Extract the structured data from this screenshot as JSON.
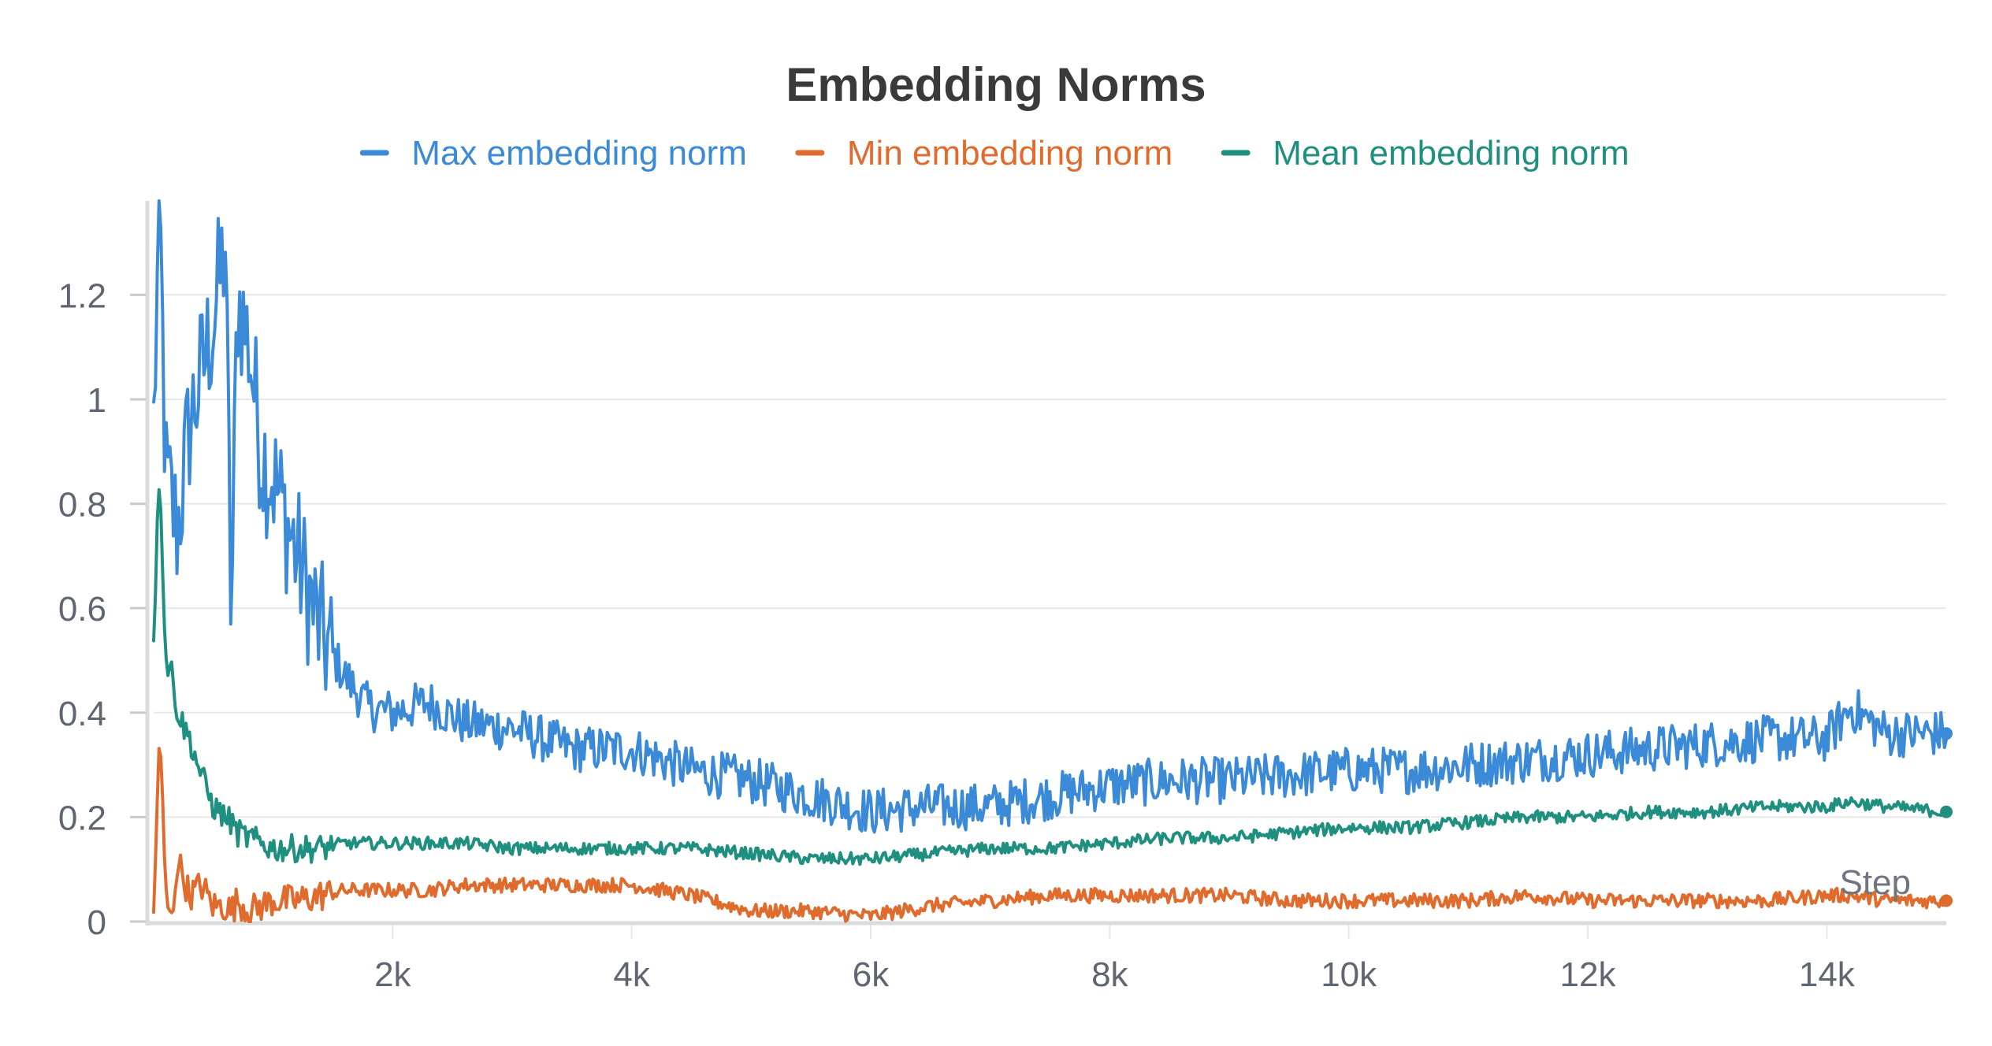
{
  "chart_data": {
    "type": "line",
    "title": "Embedding Norms",
    "xlabel": "Step",
    "ylabel": "",
    "xlim": [
      0,
      15000
    ],
    "ylim": [
      0,
      1.38
    ],
    "x_ticks": [
      2000,
      4000,
      6000,
      8000,
      10000,
      12000,
      14000
    ],
    "x_tick_labels": [
      "2k",
      "4k",
      "6k",
      "8k",
      "10k",
      "12k",
      "14k"
    ],
    "y_ticks": [
      0,
      0.2,
      0.4,
      0.6,
      0.8,
      1,
      1.2
    ],
    "y_tick_labels": [
      "0",
      "0.2",
      "0.4",
      "0.6",
      "0.8",
      "1",
      "1.2"
    ],
    "grid": true,
    "legend_position": "top-center",
    "x": [
      0,
      50,
      100,
      150,
      200,
      300,
      400,
      500,
      600,
      650,
      700,
      800,
      900,
      1000,
      1200,
      1400,
      1600,
      1800,
      2000,
      2300,
      2600,
      3000,
      3500,
      4000,
      4500,
      5000,
      5500,
      6000,
      6500,
      7000,
      7500,
      8000,
      8500,
      9000,
      9500,
      10000,
      10500,
      11000,
      11500,
      12000,
      12500,
      13000,
      13500,
      14000,
      14200,
      14500,
      15000
    ],
    "series": [
      {
        "name": "Max embedding norm",
        "color": "#3b8ad8",
        "values": [
          0.95,
          1.38,
          0.85,
          0.8,
          0.75,
          0.95,
          1.05,
          1.15,
          1.3,
          0.55,
          1.2,
          1.1,
          0.9,
          0.85,
          0.7,
          0.55,
          0.47,
          0.41,
          0.4,
          0.42,
          0.38,
          0.37,
          0.33,
          0.33,
          0.29,
          0.27,
          0.24,
          0.21,
          0.22,
          0.22,
          0.24,
          0.26,
          0.27,
          0.27,
          0.28,
          0.29,
          0.29,
          0.3,
          0.31,
          0.32,
          0.33,
          0.34,
          0.35,
          0.35,
          0.41,
          0.36,
          0.36
        ]
      },
      {
        "name": "Min embedding norm",
        "color": "#e06b2c",
        "values": [
          0,
          0.38,
          0.05,
          0,
          0.12,
          0.05,
          0.07,
          0.03,
          0.03,
          0.02,
          0.04,
          0.02,
          0.03,
          0.04,
          0.04,
          0.05,
          0.06,
          0.06,
          0.06,
          0.06,
          0.07,
          0.07,
          0.07,
          0.07,
          0.05,
          0.02,
          0.02,
          0.01,
          0.03,
          0.04,
          0.05,
          0.05,
          0.05,
          0.05,
          0.04,
          0.04,
          0.04,
          0.04,
          0.05,
          0.04,
          0.04,
          0.04,
          0.04,
          0.05,
          0.05,
          0.04,
          0.04
        ]
      },
      {
        "name": "Mean embedding norm",
        "color": "#1f8f80",
        "values": [
          0.55,
          0.88,
          0.5,
          0.48,
          0.4,
          0.35,
          0.28,
          0.22,
          0.2,
          0.19,
          0.17,
          0.16,
          0.15,
          0.14,
          0.14,
          0.14,
          0.15,
          0.15,
          0.15,
          0.15,
          0.15,
          0.14,
          0.14,
          0.14,
          0.14,
          0.13,
          0.12,
          0.12,
          0.13,
          0.14,
          0.14,
          0.15,
          0.16,
          0.16,
          0.17,
          0.18,
          0.18,
          0.19,
          0.2,
          0.2,
          0.21,
          0.21,
          0.22,
          0.22,
          0.23,
          0.22,
          0.21
        ]
      }
    ]
  }
}
